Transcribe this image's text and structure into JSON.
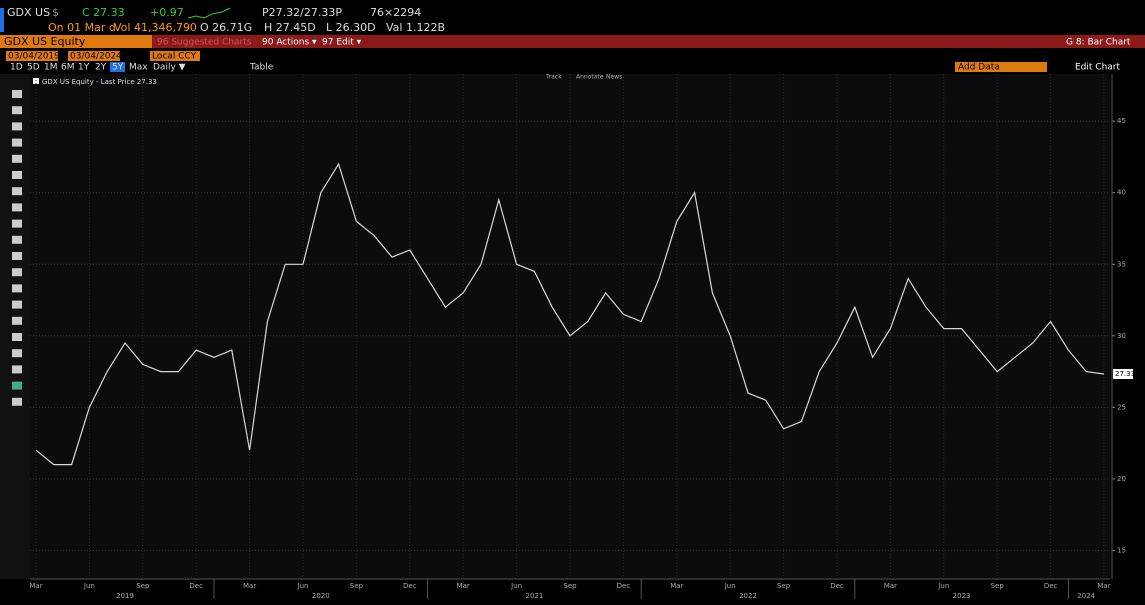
{
  "header": {
    "ticker": "GDX US",
    "currency": "$",
    "close": "C 27.33",
    "change": "+0.97",
    "bid_ask": "P27.32/27.33P",
    "size": "76×2294",
    "date": "On 01 Mar d",
    "volume": "Vol 41,346,790",
    "open": "O 26.71G",
    "high": "H 27.45D",
    "low": "L 26.30D",
    "value": "Val 1.122B"
  },
  "menu": {
    "security": "GDX US Equity",
    "suggested": "96 Suggested Charts",
    "actions": "90 Actions ▾",
    "edit": "97 Edit ▾",
    "chart_name": "G 8: Bar Chart"
  },
  "range": {
    "start": "03/04/2019",
    "end": "03/04/2024",
    "currency": "Local CCY"
  },
  "toolbar": {
    "periods": [
      "1D",
      "5D",
      "1M",
      "6M",
      "1Y",
      "2Y",
      "5Y",
      "Max"
    ],
    "frequency": "Daily ▼",
    "table": "Table",
    "add_data": "Add Data",
    "edit_chart": "Edit Chart"
  },
  "chart_tools": [
    "Track",
    "Annotate",
    "News"
  ],
  "chart_data": {
    "type": "line",
    "categories": [
      "Mar",
      null,
      null,
      "Jun",
      null,
      null,
      "Sep",
      null,
      null,
      "Dec",
      null,
      null,
      "Mar",
      null,
      null,
      "Jun",
      null,
      null,
      "Sep",
      null,
      null,
      "Dec",
      null,
      null,
      "Mar",
      null,
      null,
      "Jun",
      null,
      null,
      "Sep",
      null,
      null,
      "Dec",
      null,
      null,
      "Mar",
      null,
      null,
      "Jun",
      null,
      null,
      "Sep",
      null,
      null,
      "Dec",
      null,
      null,
      "Mar",
      null,
      null,
      "Jun",
      null,
      null,
      "Sep",
      null,
      null,
      "Dec",
      null,
      null,
      "Mar"
    ],
    "years": [
      "2019",
      "2020",
      "2021",
      "2022",
      "2023",
      "2024"
    ],
    "series": [
      {
        "name": "GDX US Equity - Last Price 27.33",
        "color": "#d8d8d8",
        "values": [
          22,
          21,
          21,
          25,
          27.5,
          29.5,
          28,
          27.5,
          27.5,
          29,
          28.5,
          29,
          22,
          31,
          35,
          35,
          40,
          42,
          38,
          37,
          35.5,
          36,
          34,
          32,
          33,
          35,
          39.5,
          35,
          34.5,
          32,
          30,
          31,
          33,
          31.5,
          31,
          34,
          38,
          40,
          33,
          30,
          26,
          25.5,
          23.5,
          24,
          27.5,
          29.5,
          32,
          28.5,
          30.5,
          34,
          32,
          30.5,
          30.5,
          29,
          27.5,
          28.5,
          29.5,
          31,
          29,
          27.5,
          27.33
        ]
      }
    ],
    "last_value": 27.33,
    "ylim": [
      13,
      48.3
    ],
    "yticks": [
      15,
      20,
      25,
      30,
      35,
      40,
      45
    ],
    "grid": true
  }
}
